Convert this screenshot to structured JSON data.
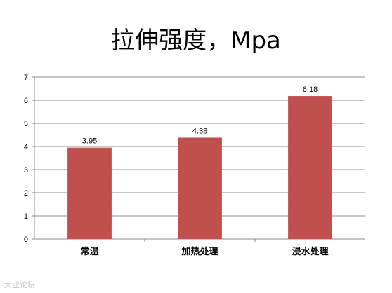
{
  "chart_data": {
    "type": "bar",
    "title": "拉伸强度，Mpa",
    "categories": [
      "常温",
      "加热处理",
      "浸水处理"
    ],
    "values": [
      3.95,
      4.38,
      6.18
    ],
    "data_labels": [
      "3.95",
      "4.38",
      "6.18"
    ],
    "ylim": [
      0,
      7
    ],
    "yticks": [
      "0",
      "1",
      "2",
      "3",
      "4",
      "5",
      "6",
      "7"
    ],
    "grid": true,
    "legend": "none",
    "bar_color": "#c0504d"
  },
  "watermark": "大业论坛"
}
